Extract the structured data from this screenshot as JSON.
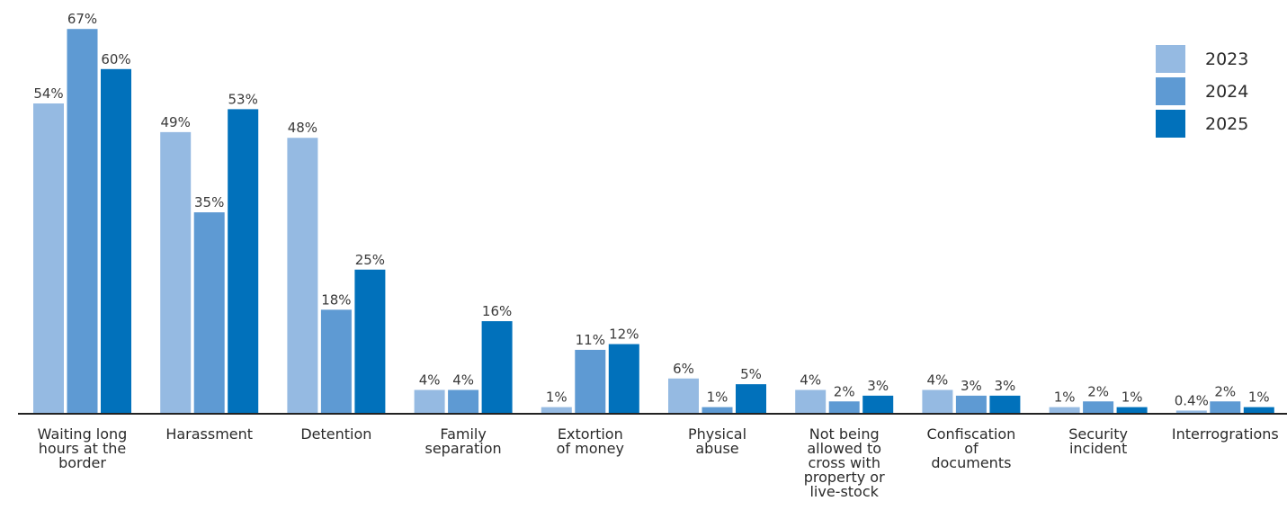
{
  "chart_data": {
    "type": "bar",
    "categories": [
      [
        "Waiting long",
        "hours at the",
        "border"
      ],
      [
        "Harassment"
      ],
      [
        "Detention"
      ],
      [
        "Family",
        "separation"
      ],
      [
        "Extortion",
        "of money"
      ],
      [
        "Physical",
        "abuse"
      ],
      [
        "Not being",
        "allowed to",
        "cross with",
        "property or",
        "live-stock"
      ],
      [
        "Confiscation",
        "of",
        "documents"
      ],
      [
        "Security",
        "incident"
      ],
      [
        "Interrogrations"
      ]
    ],
    "series": [
      {
        "name": "2023",
        "color": "#95bae2",
        "values": [
          54,
          49,
          48,
          4,
          1,
          6,
          4,
          4,
          1,
          0.4
        ],
        "labels": [
          "54%",
          "49%",
          "48%",
          "4%",
          "1%",
          "6%",
          "4%",
          "4%",
          "1%",
          "0.4%"
        ]
      },
      {
        "name": "2024",
        "color": "#5e9ad3",
        "values": [
          67,
          35,
          18,
          4,
          11,
          1,
          2,
          3,
          2,
          2
        ],
        "labels": [
          "67%",
          "35%",
          "18%",
          "4%",
          "11%",
          "1%",
          "2%",
          "3%",
          "2%",
          "2%"
        ]
      },
      {
        "name": "2025",
        "color": "#0171bb",
        "values": [
          60,
          53,
          25,
          16,
          12,
          5,
          3,
          3,
          1,
          1
        ],
        "labels": [
          "60%",
          "53%",
          "25%",
          "16%",
          "12%",
          "5%",
          "3%",
          "3%",
          "1%",
          "1%"
        ]
      }
    ],
    "ylim": [
      0,
      67
    ],
    "grid": false,
    "legend_position": "top-right",
    "axis_color": "#222222"
  }
}
